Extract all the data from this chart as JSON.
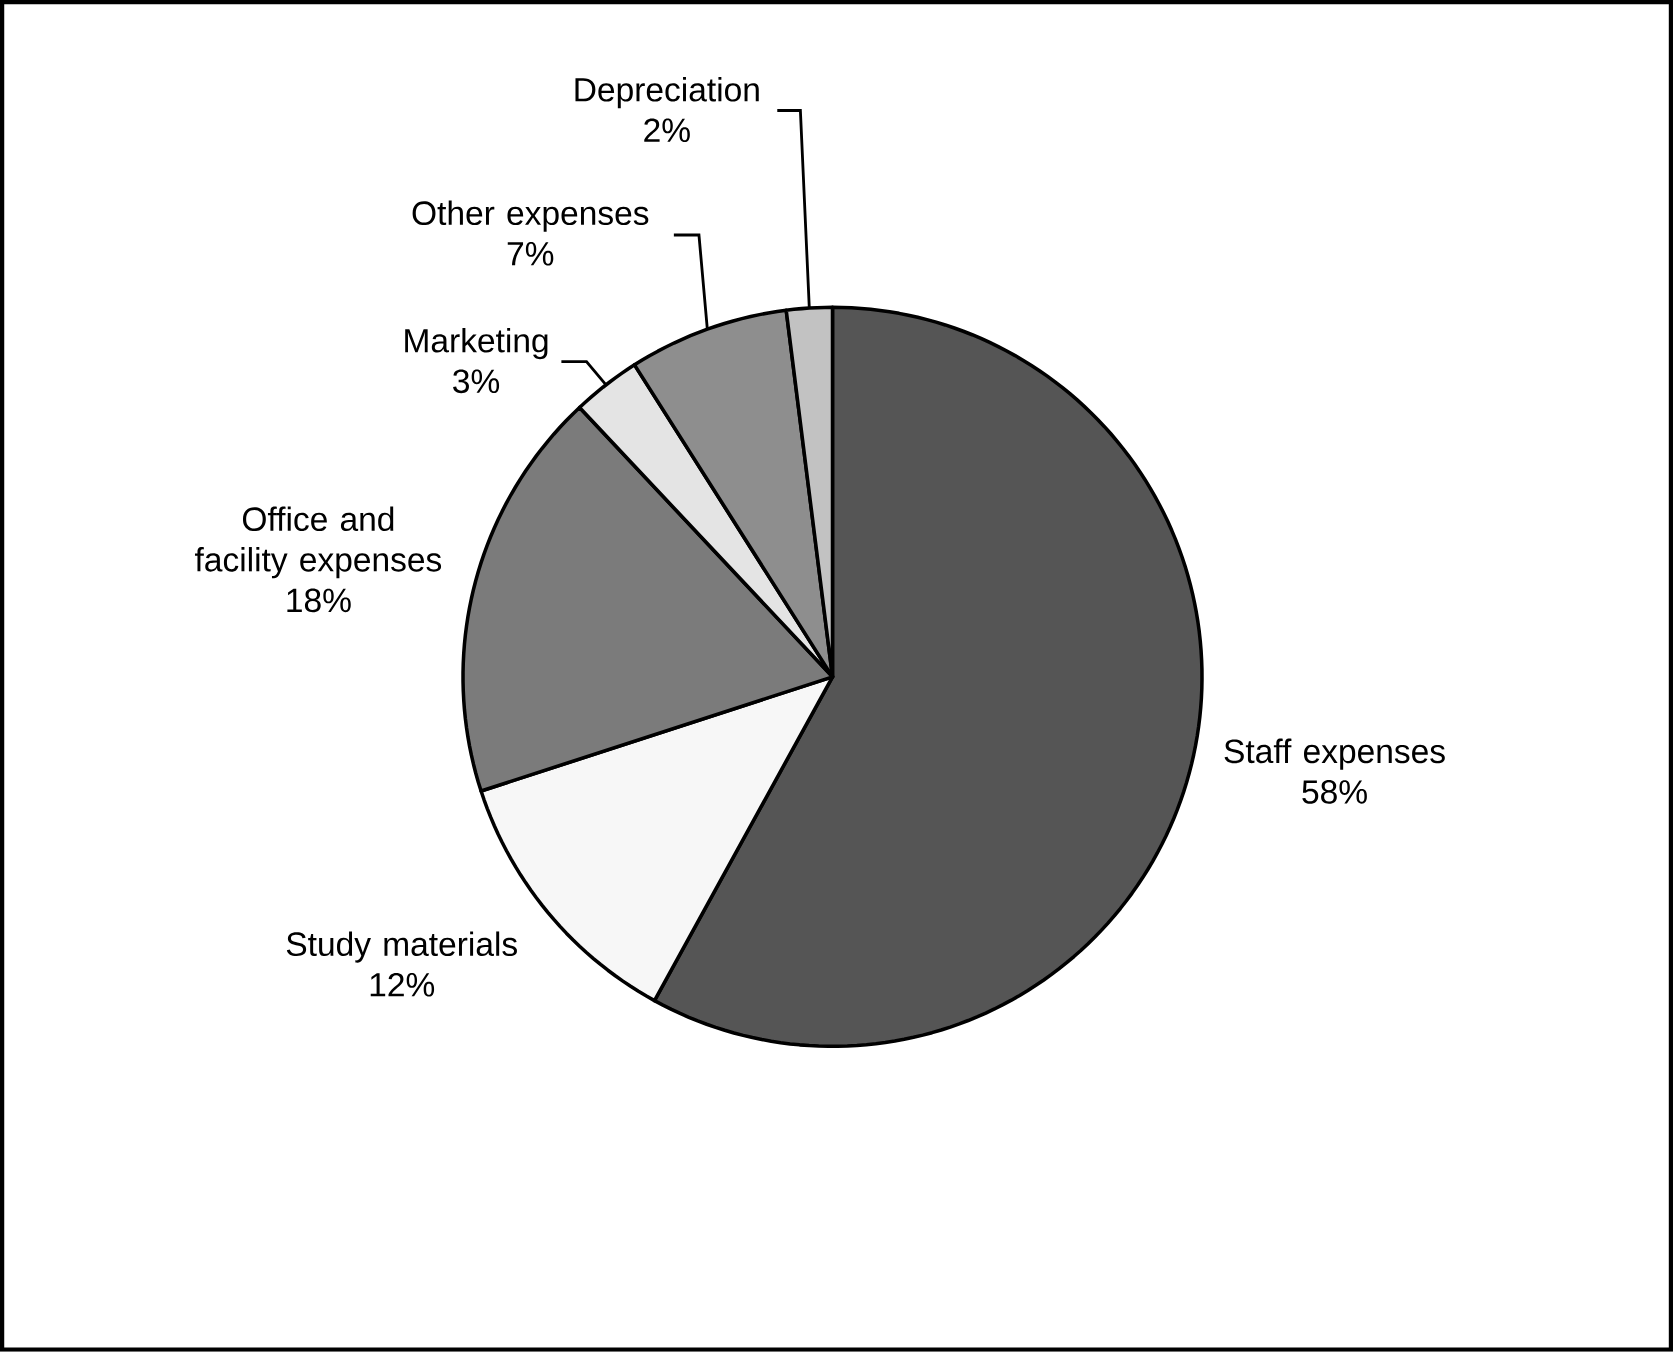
{
  "chart_data": {
    "type": "pie",
    "categories": [
      "Staff expenses",
      "Study materials",
      "Office and facility expenses",
      "Marketing",
      "Other expenses",
      "Depreciation"
    ],
    "values": [
      58,
      12,
      18,
      3,
      7,
      2
    ],
    "value_labels": [
      "58%",
      "12%",
      "18%",
      "3%",
      "7%",
      "2%"
    ],
    "colors": [
      "#555555",
      "#f7f7f7",
      "#7b7b7b",
      "#e4e4e4",
      "#8e8e8e",
      "#c2c2c2"
    ],
    "legend": false
  }
}
